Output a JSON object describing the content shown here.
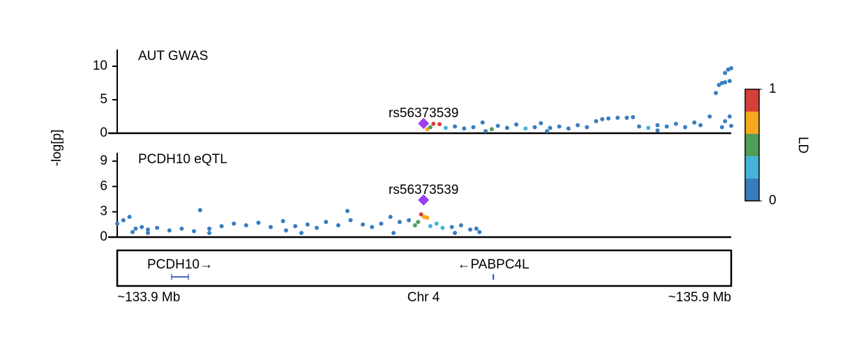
{
  "ylabel": "-log[p]",
  "chart_data": [
    {
      "type": "scatter",
      "title": "AUT GWAS",
      "xlim": [
        133.9,
        135.9
      ],
      "ylim": [
        0,
        12.5
      ],
      "yticks": [
        0,
        5,
        10
      ],
      "lead": {
        "label": "rs56373539",
        "x": 134.898,
        "y": 1.46,
        "color": "#9b3ff0"
      },
      "x": [
        134.9,
        134.93,
        134.95,
        134.91,
        134.92,
        134.97,
        135.0,
        135.03,
        135.06,
        135.09,
        135.12,
        135.14,
        135.17,
        135.2,
        135.23,
        135.26,
        135.28,
        135.31,
        135.34,
        135.37,
        135.4,
        135.43,
        135.46,
        135.48,
        135.5,
        135.53,
        135.56,
        135.58,
        135.6,
        135.63,
        135.66,
        135.69,
        135.72,
        135.75,
        135.78,
        135.8,
        135.83,
        135.85,
        135.86,
        135.87,
        135.88,
        135.89,
        135.9,
        135.88,
        135.895,
        135.88,
        135.895,
        135.87,
        135.9,
        135.66,
        135.3,
        135.1
      ],
      "y": [
        1.2,
        1.4,
        1.35,
        0.6,
        0.9,
        0.8,
        1.0,
        0.7,
        0.9,
        1.6,
        0.6,
        1.1,
        0.8,
        1.3,
        0.7,
        0.9,
        1.5,
        0.8,
        1.0,
        0.7,
        1.2,
        0.9,
        1.8,
        2.1,
        2.2,
        2.3,
        2.3,
        2.4,
        1.0,
        0.8,
        1.2,
        1.0,
        1.4,
        0.9,
        1.6,
        1.2,
        2.5,
        6.0,
        7.2,
        7.5,
        9.0,
        9.5,
        9.7,
        7.6,
        7.8,
        1.8,
        2.5,
        0.9,
        1.1,
        0.4,
        0.3,
        0.3
      ],
      "ld": [
        0.9,
        0.95,
        0.9,
        0.7,
        0.5,
        0.3,
        0.1,
        0.1,
        0.1,
        0.1,
        0.5,
        0.1,
        0.1,
        0.1,
        0.3,
        0.1,
        0.1,
        0.1,
        0.1,
        0.1,
        0.1,
        0.1,
        0.1,
        0.1,
        0.1,
        0.1,
        0.1,
        0.1,
        0.1,
        0.3,
        0.1,
        0.1,
        0.1,
        0.1,
        0.1,
        0.1,
        0.1,
        0.1,
        0.1,
        0.1,
        0.1,
        0.1,
        0.1,
        0.1,
        0.1,
        0.1,
        0.1,
        0.1,
        0.1,
        0.1,
        0.1,
        0.1
      ]
    },
    {
      "type": "scatter",
      "title": "PCDH10 eQTL",
      "xlim": [
        133.9,
        135.9
      ],
      "ylim": [
        0,
        10
      ],
      "yticks": [
        0,
        3,
        6,
        9
      ],
      "lead": {
        "label": "rs56373539",
        "x": 134.898,
        "y": 4.4,
        "color": "#9b3ff0"
      },
      "x": [
        133.9,
        133.92,
        133.94,
        133.96,
        133.98,
        134.0,
        134.03,
        134.07,
        134.11,
        134.15,
        134.17,
        134.2,
        134.24,
        134.28,
        134.32,
        134.36,
        134.4,
        134.44,
        134.45,
        134.48,
        134.52,
        134.55,
        134.58,
        134.62,
        134.65,
        134.66,
        134.7,
        134.73,
        134.76,
        134.79,
        134.82,
        134.85,
        134.87,
        134.88,
        134.89,
        134.9,
        134.91,
        134.92,
        134.94,
        134.96,
        134.99,
        135.02,
        135.05,
        135.07,
        135.08,
        134.2,
        134.5,
        134.8,
        135.0,
        134.0,
        133.95
      ],
      "y": [
        1.6,
        2.0,
        2.4,
        1.0,
        1.2,
        0.9,
        1.1,
        0.8,
        1.0,
        0.7,
        3.2,
        1.0,
        1.3,
        1.6,
        1.4,
        1.7,
        1.2,
        1.9,
        0.8,
        1.3,
        1.5,
        1.1,
        1.8,
        1.4,
        3.1,
        2.0,
        1.5,
        1.2,
        1.6,
        2.4,
        1.8,
        2.0,
        1.4,
        1.8,
        2.7,
        2.4,
        2.3,
        1.3,
        1.6,
        1.1,
        1.2,
        1.4,
        0.9,
        1.0,
        0.6,
        0.5,
        0.5,
        0.5,
        0.5,
        0.5,
        0.6
      ],
      "ld": [
        0.1,
        0.1,
        0.1,
        0.1,
        0.1,
        0.1,
        0.1,
        0.1,
        0.1,
        0.1,
        0.1,
        0.1,
        0.1,
        0.1,
        0.1,
        0.1,
        0.1,
        0.1,
        0.1,
        0.1,
        0.1,
        0.1,
        0.1,
        0.1,
        0.1,
        0.1,
        0.1,
        0.1,
        0.1,
        0.1,
        0.1,
        0.1,
        0.6,
        0.5,
        0.9,
        0.75,
        0.8,
        0.3,
        0.3,
        0.3,
        0.1,
        0.1,
        0.1,
        0.1,
        0.1,
        0.1,
        0.1,
        0.1,
        0.1,
        0.1,
        0.1
      ]
    }
  ],
  "genes": [
    {
      "label": "PCDH10→",
      "start": 134.077,
      "end": 134.132,
      "color": "#4466cc"
    },
    {
      "label": "←PABPC4L",
      "start": 135.124,
      "end": 135.126,
      "color": "#4466cc"
    }
  ],
  "x_axis": {
    "left": "~133.9 Mb",
    "center": "Chr 4",
    "right": "~135.9 Mb"
  },
  "colorbar": {
    "label": "LD",
    "bins": [
      0,
      0.2,
      0.4,
      0.6,
      0.8,
      1
    ],
    "colors": [
      "#3a7dbf",
      "#46b4d8",
      "#4f9e5a",
      "#f5a81c",
      "#d43f3a"
    ],
    "ticks": [
      0,
      1
    ]
  }
}
